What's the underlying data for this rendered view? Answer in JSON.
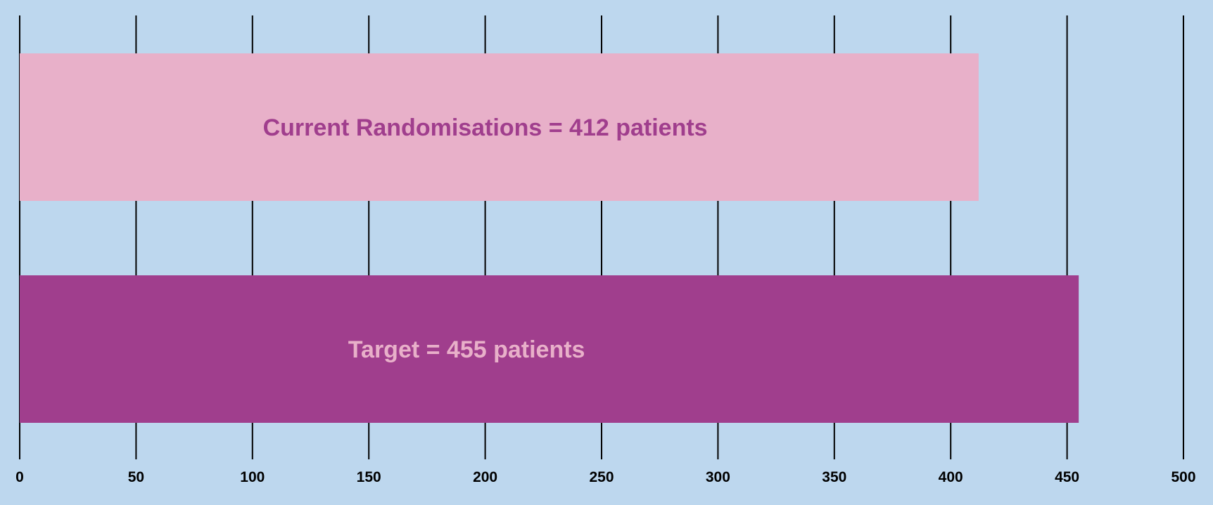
{
  "chart_data": {
    "type": "bar",
    "orientation": "horizontal",
    "categories": [
      "Current Randomisations",
      "Target"
    ],
    "values": [
      412,
      455
    ],
    "bar_labels": [
      "Current Randomisations = 412 patients",
      "Target = 455 patients"
    ],
    "xlim": [
      0,
      500
    ],
    "xticks": [
      0,
      50,
      100,
      150,
      200,
      250,
      300,
      350,
      400,
      450,
      500
    ],
    "tick_labels": [
      "0",
      "50",
      "100",
      "150",
      "200",
      "250",
      "300",
      "350",
      "400",
      "450",
      "500"
    ],
    "grid": true,
    "legend": "none",
    "title": "",
    "xlabel": "",
    "ylabel": "",
    "colors": {
      "background": "#bdd7ee",
      "bars": [
        "#e8b0c9",
        "#a03e8d"
      ],
      "bar_label_text": [
        "#a03e8d",
        "#e8b0c9"
      ],
      "gridline": "#000000",
      "tick_label_text": "#000000"
    }
  }
}
